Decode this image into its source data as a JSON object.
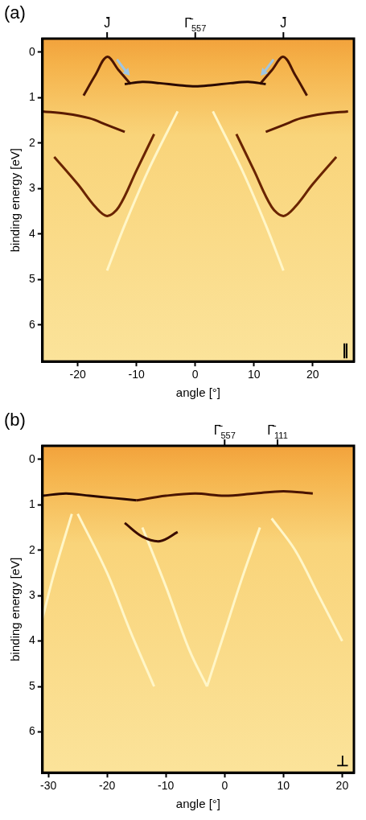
{
  "chart_data": [
    {
      "type": "line",
      "panel": "(a)",
      "x_label": "angle [°]",
      "y_label": "binding energy [eV]",
      "xlim": [
        -26,
        27
      ],
      "xticks": [
        -20,
        -10,
        0,
        10,
        20
      ],
      "ylim": [
        6.8,
        -0.3
      ],
      "yticks": [
        0,
        1,
        2,
        3,
        4,
        5,
        6
      ],
      "grid": false,
      "legend": false,
      "corner_label": "∥",
      "top_markers": [
        {
          "value": -15,
          "label": "J̄",
          "subscript": ""
        },
        {
          "value": 0,
          "label": "Γ̄",
          "subscript": "557"
        },
        {
          "value": 15,
          "label": "J̄",
          "subscript": ""
        }
      ],
      "arrows": [
        {
          "x": -12.5,
          "y": 0.3
        },
        {
          "x": 12.5,
          "y": 0.3
        }
      ],
      "series": [
        {
          "color": "#2a0800",
          "line_style": "solid",
          "x": [
            -12,
            -9,
            -6,
            -3,
            0,
            3,
            6,
            9,
            12
          ],
          "values": [
            0.7,
            0.65,
            0.68,
            0.72,
            0.75,
            0.72,
            0.68,
            0.65,
            0.7
          ]
        },
        {
          "color": "#4a1400",
          "line_style": "solid",
          "x": [
            -19,
            -17,
            -15,
            -13,
            -11
          ],
          "values": [
            0.95,
            0.5,
            0.1,
            0.4,
            0.7
          ]
        },
        {
          "color": "#4a1400",
          "line_style": "solid",
          "x": [
            11,
            13,
            15,
            17,
            19
          ],
          "values": [
            0.7,
            0.4,
            0.1,
            0.5,
            0.95
          ]
        },
        {
          "color": "#5a1a00",
          "line_style": "solid",
          "x": [
            -26,
            -22,
            -18,
            -15,
            -12
          ],
          "values": [
            1.3,
            1.35,
            1.45,
            1.6,
            1.75
          ]
        },
        {
          "color": "#5a1a00",
          "line_style": "solid",
          "x": [
            12,
            15,
            18,
            22,
            26
          ],
          "values": [
            1.75,
            1.6,
            1.45,
            1.35,
            1.3
          ]
        },
        {
          "color": "#6a2400",
          "line_style": "solid",
          "x": [
            -24,
            -20,
            -17,
            -15,
            -13,
            -10,
            -7
          ],
          "values": [
            2.3,
            2.9,
            3.4,
            3.6,
            3.4,
            2.6,
            1.8
          ]
        },
        {
          "color": "#6a2400",
          "line_style": "solid",
          "x": [
            7,
            10,
            13,
            15,
            17,
            20,
            24
          ],
          "values": [
            1.8,
            2.6,
            3.4,
            3.6,
            3.4,
            2.9,
            2.3
          ]
        },
        {
          "color": "#fff6c8",
          "line_style": "solid",
          "x": [
            -3,
            -8,
            -12,
            -15
          ],
          "values": [
            1.3,
            2.6,
            3.8,
            4.8
          ]
        },
        {
          "color": "#fff6c8",
          "line_style": "solid",
          "x": [
            3,
            8,
            12,
            15
          ],
          "values": [
            1.3,
            2.6,
            3.8,
            4.8
          ]
        }
      ]
    },
    {
      "type": "line",
      "panel": "(b)",
      "x_label": "angle [°]",
      "y_label": "binding energy [eV]",
      "xlim": [
        -31,
        22
      ],
      "xticks": [
        -30,
        -20,
        -10,
        0,
        10,
        20
      ],
      "ylim": [
        6.9,
        -0.3
      ],
      "yticks": [
        0,
        1,
        2,
        3,
        4,
        5,
        6
      ],
      "grid": false,
      "legend": false,
      "corner_label": "⊥",
      "top_markers": [
        {
          "value": 0,
          "label": "Γ̄",
          "subscript": "557"
        },
        {
          "value": 9,
          "label": "Γ̄",
          "subscript": "111"
        }
      ],
      "arrows": [],
      "series": [
        {
          "color": "#2a0800",
          "line_style": "solid",
          "x": [
            -31,
            -27,
            -23,
            -19,
            -15
          ],
          "values": [
            0.8,
            0.75,
            0.8,
            0.85,
            0.9
          ]
        },
        {
          "color": "#4a1400",
          "line_style": "solid",
          "x": [
            -15,
            -10,
            -5,
            0,
            5,
            10,
            15
          ],
          "values": [
            0.9,
            0.8,
            0.75,
            0.8,
            0.75,
            0.7,
            0.75
          ]
        },
        {
          "color": "#3a0c00",
          "line_style": "solid",
          "x": [
            -17,
            -14,
            -11,
            -8
          ],
          "values": [
            1.4,
            1.7,
            1.8,
            1.6
          ]
        },
        {
          "color": "#fff6c8",
          "line_style": "solid",
          "x": [
            -14,
            -10,
            -6,
            -3
          ],
          "values": [
            1.5,
            2.8,
            4.2,
            5.0
          ]
        },
        {
          "color": "#fff6c8",
          "line_style": "solid",
          "x": [
            -3,
            0,
            3,
            6
          ],
          "values": [
            5.0,
            3.8,
            2.6,
            1.5
          ]
        },
        {
          "color": "#fff6c8",
          "line_style": "solid",
          "x": [
            -25,
            -20,
            -16,
            -12
          ],
          "values": [
            1.2,
            2.5,
            3.8,
            5.0
          ]
        },
        {
          "color": "#fff6c8",
          "line_style": "solid",
          "x": [
            -26,
            -29,
            -31
          ],
          "values": [
            1.2,
            2.5,
            3.5
          ]
        },
        {
          "color": "#fff6c8",
          "line_style": "solid",
          "x": [
            8,
            12,
            16,
            20
          ],
          "values": [
            1.3,
            2.0,
            3.0,
            4.0
          ]
        }
      ]
    }
  ]
}
